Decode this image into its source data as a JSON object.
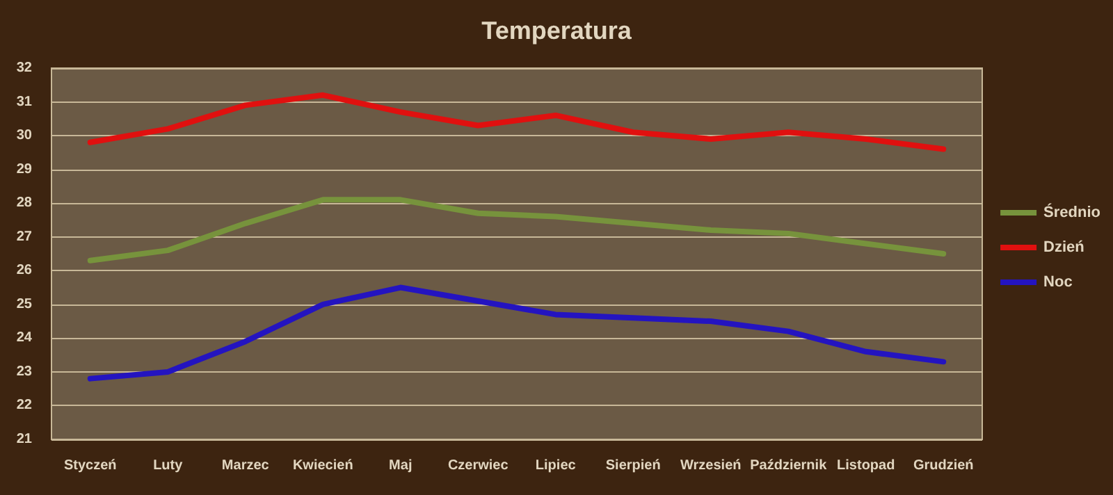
{
  "chart_data": {
    "type": "line",
    "title": "Temperatura",
    "categories": [
      "Styczeń",
      "Luty",
      "Marzec",
      "Kwiecień",
      "Maj",
      "Czerwiec",
      "Lipiec",
      "Sierpień",
      "Wrzesień",
      "Październik",
      "Listopad",
      "Grudzień"
    ],
    "series": [
      {
        "name": "Średnio",
        "color": "#77933c",
        "values": [
          26.3,
          26.6,
          27.4,
          28.1,
          28.1,
          27.7,
          27.6,
          27.4,
          27.2,
          27.1,
          26.8,
          26.5
        ]
      },
      {
        "name": "Dzień",
        "color": "#e0100f",
        "values": [
          29.8,
          30.2,
          30.9,
          31.2,
          30.7,
          30.3,
          30.6,
          30.1,
          29.9,
          30.1,
          29.9,
          29.6
        ]
      },
      {
        "name": "Noc",
        "color": "#2414c0",
        "values": [
          22.8,
          23.0,
          23.9,
          25.0,
          25.5,
          25.1,
          24.7,
          24.6,
          24.5,
          24.2,
          23.6,
          23.3
        ]
      }
    ],
    "ylim": [
      21,
      32
    ],
    "yticks": [
      21,
      22,
      23,
      24,
      25,
      26,
      27,
      28,
      29,
      30,
      31,
      32
    ],
    "grid": "y",
    "legend": "right",
    "marker": "none",
    "line_style": "solid"
  }
}
